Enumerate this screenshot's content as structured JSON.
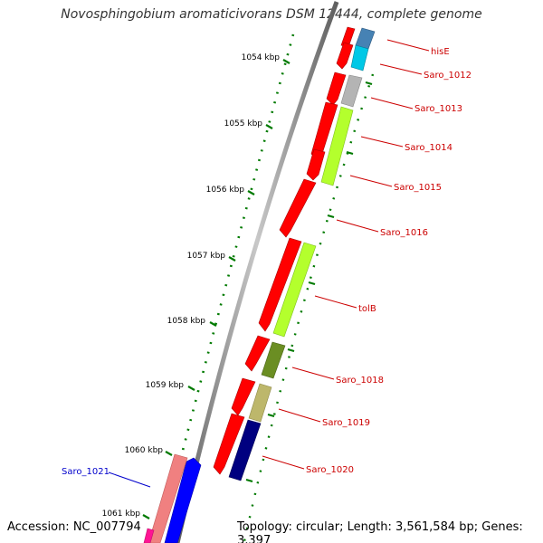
{
  "title": "Novosphingobium aromaticivorans DSM 12444, complete genome",
  "accession": "Accession: NC_007794",
  "summary": "Topology: circular; Length: 3,561,584 bp; Genes: 3,397",
  "colors": {
    "backbone": "#8c8c8c",
    "tick": "#007a00",
    "forward_label": "#cc0000",
    "reverse_label": "#0000cc",
    "cds_red": "#ff0000",
    "cds_lightgreen": "#b4ff2d",
    "cds_olive": "#6b8e23",
    "cds_khaki": "#bdb76b",
    "cds_navy": "#000080",
    "cds_grey": "#b4b4b4",
    "cds_steelblue": "#4682b4",
    "cds_cyan": "#00c8e6",
    "cds_salmon": "#f08080",
    "cds_blue": "#0000ff",
    "cds_magenta": "#ff1493"
  },
  "kbp_labels": [
    "1054 kbp",
    "1055 kbp",
    "1056 kbp",
    "1057 kbp",
    "1058 kbp",
    "1059 kbp",
    "1060 kbp",
    "1061 kbp"
  ],
  "gene_labels": [
    {
      "text": "hisE",
      "strand": "forward"
    },
    {
      "text": "Saro_1012",
      "strand": "forward"
    },
    {
      "text": "Saro_1013",
      "strand": "forward"
    },
    {
      "text": "Saro_1014",
      "strand": "forward"
    },
    {
      "text": "Saro_1015",
      "strand": "forward"
    },
    {
      "text": "Saro_1016",
      "strand": "forward"
    },
    {
      "text": "tolB",
      "strand": "forward"
    },
    {
      "text": "Saro_1018",
      "strand": "forward"
    },
    {
      "text": "Saro_1019",
      "strand": "forward"
    },
    {
      "text": "Saro_1020",
      "strand": "forward"
    },
    {
      "text": "Saro_1021",
      "strand": "reverse"
    }
  ]
}
